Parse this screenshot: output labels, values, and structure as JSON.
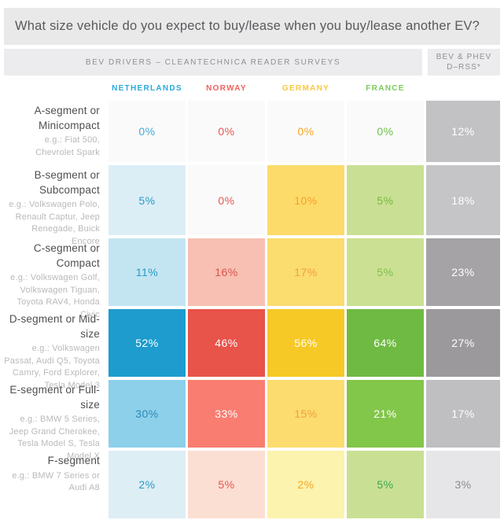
{
  "title": "What size vehicle do you expect to buy/lease when you buy/lease another EV?",
  "header": {
    "left_group": "BEV DRIVERS – CLEANTECHNICA READER SURVEYS",
    "right_group_line1": "BEV & PHEV",
    "right_group_line2": "D–RSS*"
  },
  "columns": [
    {
      "label": "NETHERLANDS",
      "color": "#29a9db"
    },
    {
      "label": "NORWAY",
      "color": "#f0625c"
    },
    {
      "label": "GERMANY",
      "color": "#fbc93c"
    },
    {
      "label": "FRANCE",
      "color": "#7ccb5a"
    }
  ],
  "rows": [
    {
      "label": "A-segment or Minicompact",
      "examples": "e.g.: Fiat 500, Chevrolet Spark",
      "cells": [
        {
          "value": "0%",
          "bg": "#fafafa",
          "fg": "#3fa9dc"
        },
        {
          "value": "0%",
          "bg": "#fafafa",
          "fg": "#e8564e"
        },
        {
          "value": "0%",
          "bg": "#fafafa",
          "fg": "#f5a623"
        },
        {
          "value": "0%",
          "bg": "#fafafa",
          "fg": "#6cbf44"
        },
        {
          "value": "12%",
          "bg": "#c2c1c4",
          "fg": "#ffffff"
        }
      ]
    },
    {
      "label": "B-segment or Subcompact",
      "examples": "e.g.: Volkswagen Polo, Renault Captur, Jeep Renegade, Buick Encore",
      "cells": [
        {
          "value": "5%",
          "bg": "#dceef5",
          "fg": "#2b9ac7"
        },
        {
          "value": "0%",
          "bg": "#fafafa",
          "fg": "#e8564e"
        },
        {
          "value": "10%",
          "bg": "#fcdb6a",
          "fg": "#f5a02c"
        },
        {
          "value": "5%",
          "bg": "#c9e094",
          "fg": "#74b93f"
        },
        {
          "value": "18%",
          "bg": "#c5c4c7",
          "fg": "#ffffff"
        }
      ]
    },
    {
      "label": "C-segment or Compact",
      "examples": "e.g.: Volkswagen Golf, Volkswagen Tiguan, Toyota RAV4, Honda Civic",
      "cells": [
        {
          "value": "11%",
          "bg": "#c3e5f2",
          "fg": "#2b9ac7"
        },
        {
          "value": "16%",
          "bg": "#f7c0b2",
          "fg": "#dd524c"
        },
        {
          "value": "17%",
          "bg": "#fbdc6e",
          "fg": "#f2a03d"
        },
        {
          "value": "5%",
          "bg": "#cbe093",
          "fg": "#7fbf4d"
        },
        {
          "value": "23%",
          "bg": "#a5a3a6",
          "fg": "#ffffff"
        }
      ]
    },
    {
      "label": "D-segment or Mid-size",
      "examples": "e.g.: Volkswagen Passat, Audi Q5, Toyota Camry, Ford Explorer, Tesla Model 3",
      "cells": [
        {
          "value": "52%",
          "bg": "#1d9ccd",
          "fg": "#ffffff"
        },
        {
          "value": "46%",
          "bg": "#e8534a",
          "fg": "#ffffff"
        },
        {
          "value": "56%",
          "bg": "#f6c926",
          "fg": "#ffffff"
        },
        {
          "value": "64%",
          "bg": "#6fba42",
          "fg": "#ffffff"
        },
        {
          "value": "27%",
          "bg": "#9b999c",
          "fg": "#ffffff"
        }
      ]
    },
    {
      "label": "E-segment or Full-size",
      "examples": "e.g.: BMW 5 Series, Jeep Grand Cherokee, Tesla Model S, Tesla Model X",
      "cells": [
        {
          "value": "30%",
          "bg": "#8dd0ea",
          "fg": "#2d89b8"
        },
        {
          "value": "33%",
          "bg": "#f97d71",
          "fg": "#ffffff"
        },
        {
          "value": "15%",
          "bg": "#fcdc6f",
          "fg": "#f2a03d"
        },
        {
          "value": "21%",
          "bg": "#82c64a",
          "fg": "#ffffff"
        },
        {
          "value": "17%",
          "bg": "#bfbec1",
          "fg": "#ffffff"
        }
      ]
    },
    {
      "label": "F-segment",
      "examples": "e.g.: BMW 7 Series or Audi A8",
      "cells": [
        {
          "value": "2%",
          "bg": "#ddeef4",
          "fg": "#2b9ac7"
        },
        {
          "value": "5%",
          "bg": "#fbdfd2",
          "fg": "#e8564e"
        },
        {
          "value": "2%",
          "bg": "#fbf3ae",
          "fg": "#f5a623"
        },
        {
          "value": "5%",
          "bg": "#c9e094",
          "fg": "#3aa653"
        },
        {
          "value": "3%",
          "bg": "#e6e5e8",
          "fg": "#8d8c8f"
        }
      ]
    }
  ],
  "chart_data": {
    "type": "heatmap",
    "title": "What size vehicle do you expect to buy/lease when you buy/lease another EV?",
    "column_groups": [
      "BEV DRIVERS – CLEANTECHNICA READER SURVEYS",
      "BEV & PHEV D–RSS*"
    ],
    "columns": [
      "Netherlands",
      "Norway",
      "Germany",
      "France",
      "BEV & PHEV D–RSS*"
    ],
    "rows": [
      "A-segment or Minicompact (e.g.: Fiat 500, Chevrolet Spark)",
      "B-segment or Subcompact (e.g.: Volkswagen Polo, Renault Captur, Jeep Renegade, Buick Encore)",
      "C-segment or Compact (e.g.: Volkswagen Golf, Volkswagen Tiguan, Toyota RAV4, Honda Civic)",
      "D-segment or Mid-size (e.g.: Volkswagen Passat, Audi Q5, Toyota Camry, Ford Explorer, Tesla Model 3)",
      "E-segment or Full-size (e.g.: BMW 5 Series, Jeep Grand Cherokee, Tesla Model S, Tesla Model X)",
      "F-segment (e.g.: BMW 7 Series or Audi A8)"
    ],
    "values_percent": [
      [
        0,
        0,
        0,
        0,
        12
      ],
      [
        5,
        0,
        10,
        5,
        18
      ],
      [
        11,
        16,
        17,
        5,
        23
      ],
      [
        52,
        46,
        56,
        64,
        27
      ],
      [
        30,
        33,
        15,
        21,
        17
      ],
      [
        2,
        5,
        2,
        5,
        3
      ]
    ],
    "series_colors": {
      "Netherlands": "#29a9db",
      "Norway": "#f0625c",
      "Germany": "#fbc93c",
      "France": "#7ccb5a",
      "BEV & PHEV D–RSS*": "#9b999c"
    },
    "legend_position": "none",
    "grid": false
  }
}
